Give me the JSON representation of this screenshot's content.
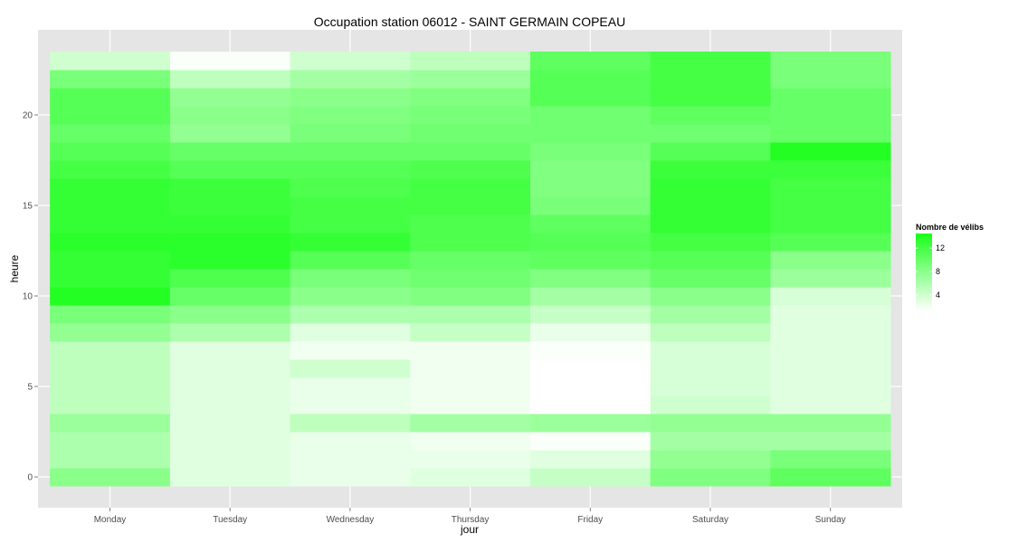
{
  "chart_data": {
    "type": "heatmap",
    "title": "Occupation station 06012 - SAINT GERMAIN COPEAU",
    "xlabel": "jour",
    "ylabel": "heure",
    "x_categories": [
      "Monday",
      "Tuesday",
      "Wednesday",
      "Thursday",
      "Friday",
      "Saturday",
      "Sunday"
    ],
    "y_values": [
      0,
      1,
      2,
      3,
      4,
      5,
      6,
      7,
      8,
      9,
      10,
      11,
      12,
      13,
      14,
      15,
      16,
      17,
      18,
      19,
      20,
      21,
      22,
      23
    ],
    "y_ticks": [
      0,
      5,
      10,
      15,
      20
    ],
    "ylim": [
      -0.5,
      23.5
    ],
    "legend": {
      "title": "Nombre de vélibs",
      "breaks": [
        4,
        8,
        12
      ],
      "color_low": "#ffffff",
      "color_high": "#1aff1a",
      "min": 1.2,
      "max": 14.5
    },
    "values_by_day": [
      [
        8.0,
        6.0,
        6.0,
        7.0,
        5.0,
        5.0,
        5.0,
        5.0,
        7.5,
        9.0,
        14.0,
        13.0,
        13.0,
        13.5,
        13.0,
        13.0,
        13.0,
        12.0,
        11.0,
        10.0,
        11.0,
        11.0,
        9.0,
        4.0
      ],
      [
        3.0,
        3.0,
        3.0,
        3.0,
        3.0,
        3.0,
        3.0,
        3.0,
        6.0,
        8.0,
        10.0,
        11.5,
        13.5,
        13.5,
        13.0,
        12.5,
        12.5,
        11.0,
        10.0,
        7.5,
        8.0,
        7.5,
        5.0,
        1.5
      ],
      [
        2.5,
        2.5,
        2.5,
        5.0,
        2.5,
        2.5,
        4.0,
        2.0,
        3.0,
        6.0,
        8.0,
        9.0,
        11.0,
        13.0,
        12.0,
        12.0,
        11.5,
        11.0,
        10.0,
        9.0,
        8.5,
        8.0,
        6.5,
        4.0
      ],
      [
        3.0,
        2.5,
        2.0,
        6.5,
        2.0,
        2.0,
        2.0,
        2.0,
        4.5,
        6.0,
        8.5,
        9.5,
        10.0,
        11.5,
        11.5,
        12.0,
        12.0,
        11.5,
        10.0,
        9.5,
        9.0,
        8.5,
        7.0,
        5.0
      ],
      [
        4.5,
        3.0,
        1.5,
        7.0,
        1.2,
        1.2,
        1.2,
        1.5,
        2.5,
        4.5,
        6.5,
        8.5,
        10.5,
        11.0,
        10.5,
        9.0,
        8.5,
        8.5,
        9.0,
        9.5,
        9.5,
        11.0,
        11.0,
        10.5
      ],
      [
        8.5,
        7.5,
        6.5,
        7.5,
        4.0,
        3.5,
        3.5,
        3.5,
        5.0,
        6.5,
        8.0,
        10.0,
        11.0,
        12.0,
        13.0,
        13.0,
        13.0,
        12.5,
        11.0,
        9.5,
        10.5,
        12.0,
        12.0,
        12.0
      ],
      [
        10.5,
        9.0,
        6.5,
        7.5,
        3.0,
        3.0,
        3.0,
        3.0,
        3.0,
        3.0,
        3.5,
        7.0,
        8.0,
        11.0,
        12.0,
        12.0,
        12.0,
        12.5,
        14.0,
        10.0,
        10.0,
        10.0,
        9.0,
        9.0
      ]
    ]
  }
}
